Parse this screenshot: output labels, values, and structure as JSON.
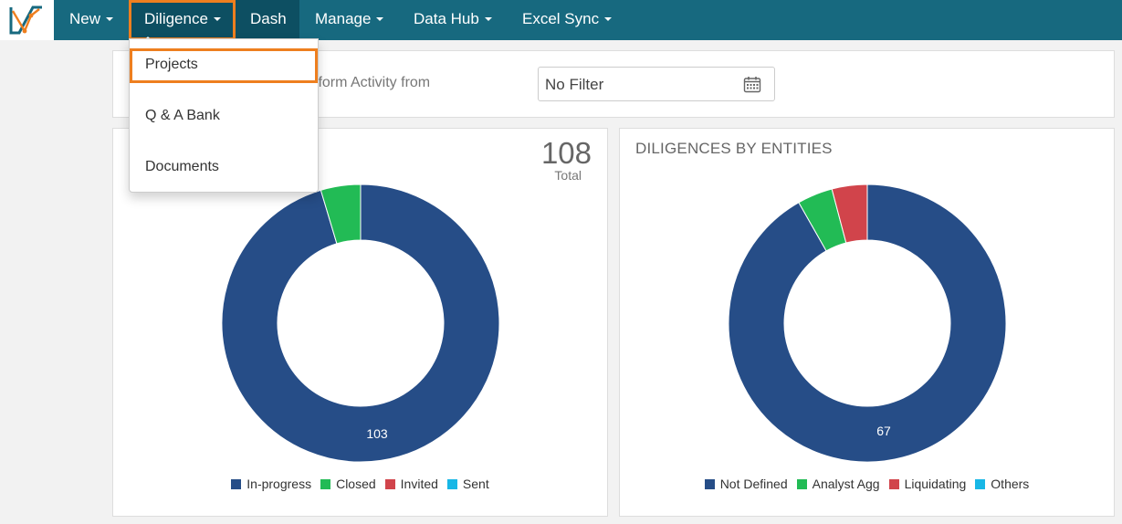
{
  "nav": {
    "new": "New",
    "diligence": "Diligence",
    "dash": "Dash",
    "manage": "Manage",
    "data_hub": "Data Hub",
    "excel_sync": "Excel Sync"
  },
  "dropdown": {
    "items": [
      "Projects",
      "Q & A Bank",
      "Documents"
    ]
  },
  "filter": {
    "label": "Platform Activity from",
    "visible_label": "tform Activity from",
    "value": "No Filter"
  },
  "status_chart": {
    "total": "108",
    "total_label": "Total",
    "center_label": "103"
  },
  "entities_chart": {
    "title": "DILIGENCES BY ENTITIES",
    "center_label": "67"
  },
  "colors": {
    "navbar": "#17697f",
    "nav_active": "#0d4f62",
    "highlight": "#ee7f1f",
    "blue": "#264d87",
    "green": "#22bb55",
    "red": "#d1444b",
    "cyan": "#18b7e6"
  },
  "chart_data": [
    {
      "type": "pie",
      "title": "",
      "total": 108,
      "categories": [
        "In-progress",
        "Closed",
        "Invited",
        "Sent"
      ],
      "values": [
        103,
        5,
        0,
        0
      ]
    },
    {
      "type": "pie",
      "title": "DILIGENCES BY ENTITIES",
      "categories": [
        "Not Defined",
        "Analyst Agg",
        "Liquidating",
        "Others"
      ],
      "values": [
        67,
        3,
        3,
        0
      ]
    }
  ]
}
